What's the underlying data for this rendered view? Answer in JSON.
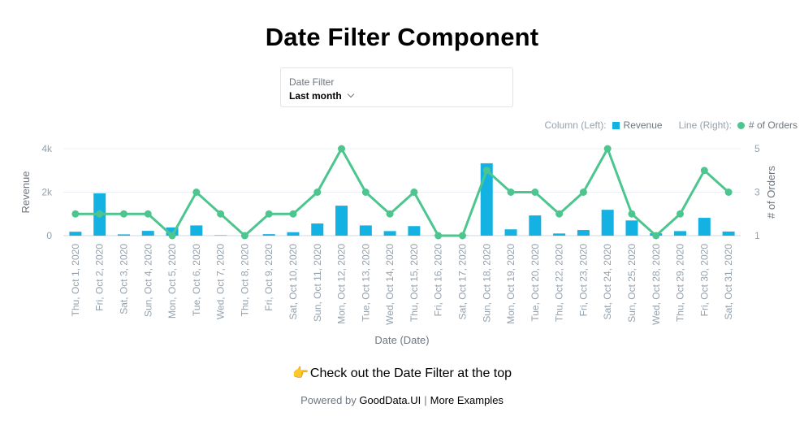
{
  "page": {
    "title": "Date Filter Component",
    "cta_icon": "👉",
    "cta_text": "Check out the Date Filter at the top",
    "footer_prefix": "Powered by",
    "footer_link": "GoodData.UI",
    "footer_separator": "|",
    "footer_more": "More Examples"
  },
  "date_filter": {
    "label": "Date Filter",
    "value": "Last month"
  },
  "legend": {
    "left_prefix": "Column (Left):",
    "left_name": "Revenue",
    "right_prefix": "Line (Right):",
    "right_name": "# of Orders"
  },
  "colors": {
    "bar": "#14b2e2",
    "line": "#4dc58f",
    "axis_text": "#94a1ad",
    "grid": "#ebeff4"
  },
  "chart_data": {
    "type": "bar",
    "xlabel": "Date (Date)",
    "ylabel": "Revenue",
    "y2label": "# of Orders",
    "ylim": [
      0,
      4000
    ],
    "y2lim": [
      1,
      5
    ],
    "yticks": [
      "0",
      "2k",
      "4k"
    ],
    "y2ticks": [
      "1",
      "3",
      "5"
    ],
    "grid": true,
    "legend_position": "top-right",
    "categories": [
      "Thu, Oct 1, 2020",
      "Fri, Oct 2, 2020",
      "Sat, Oct 3, 2020",
      "Sun, Oct 4, 2020",
      "Mon, Oct 5, 2020",
      "Tue, Oct 6, 2020",
      "Wed, Oct 7, 2020",
      "Thu, Oct 8, 2020",
      "Fri, Oct 9, 2020",
      "Sat, Oct 10, 2020",
      "Sun, Oct 11, 2020",
      "Mon, Oct 12, 2020",
      "Tue, Oct 13, 2020",
      "Wed, Oct 14, 2020",
      "Thu, Oct 15, 2020",
      "Fri, Oct 16, 2020",
      "Sat, Oct 17, 2020",
      "Sun, Oct 18, 2020",
      "Mon, Oct 19, 2020",
      "Tue, Oct 20, 2020",
      "Thu, Oct 22, 2020",
      "Fri, Oct 23, 2020",
      "Sat, Oct 24, 2020",
      "Sun, Oct 25, 2020",
      "Wed, Oct 28, 2020",
      "Thu, Oct 29, 2020",
      "Fri, Oct 30, 2020",
      "Sat, Oct 31, 2020"
    ],
    "series": [
      {
        "name": "Revenue",
        "type": "bar",
        "axis": "left",
        "values": [
          180,
          1950,
          60,
          220,
          380,
          470,
          20,
          0,
          70,
          160,
          560,
          1380,
          470,
          210,
          440,
          10,
          10,
          3330,
          290,
          930,
          100,
          260,
          1190,
          700,
          110,
          210,
          820,
          190
        ]
      },
      {
        "name": "# of Orders",
        "type": "line",
        "axis": "right",
        "values": [
          2,
          2,
          2,
          2,
          1,
          3,
          2,
          1,
          2,
          2,
          3,
          5,
          3,
          2,
          3,
          1,
          1,
          4,
          3,
          3,
          2,
          3,
          5,
          2,
          1,
          2,
          4,
          3
        ]
      }
    ]
  }
}
